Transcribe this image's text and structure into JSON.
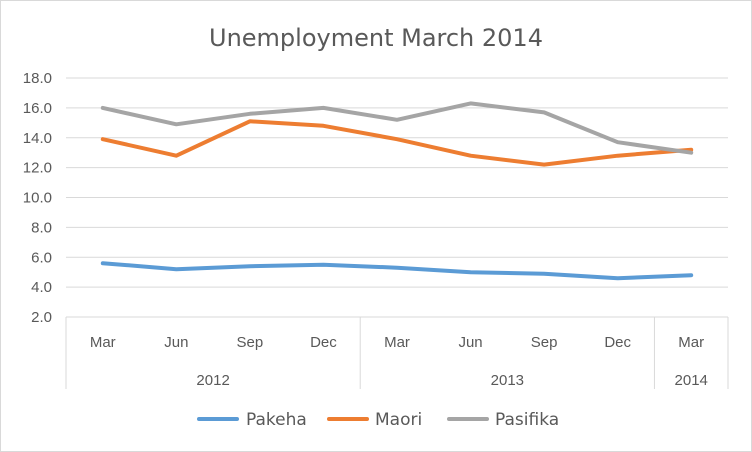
{
  "chart_data": {
    "type": "line",
    "title": "Unemployment  March 2014",
    "xlabel": "",
    "ylabel": "",
    "ylim": [
      2.0,
      18.0
    ],
    "yticks": [
      "2.0",
      "4.0",
      "6.0",
      "8.0",
      "10.0",
      "12.0",
      "14.0",
      "16.0",
      "18.0"
    ],
    "grid": true,
    "legend_position": "bottom",
    "categories": [
      "Mar",
      "Jun",
      "Sep",
      "Dec",
      "Mar",
      "Jun",
      "Sep",
      "Dec",
      "Mar"
    ],
    "year_groups": [
      {
        "label": "2012",
        "count": 4
      },
      {
        "label": "2013",
        "count": 4
      },
      {
        "label": "2014",
        "count": 1
      }
    ],
    "series": [
      {
        "name": "Pakeha",
        "color": "#5B9BD5",
        "values": [
          5.6,
          5.2,
          5.4,
          5.5,
          5.3,
          5.0,
          4.9,
          4.6,
          4.8
        ]
      },
      {
        "name": "Maori",
        "color": "#ED7D31",
        "values": [
          13.9,
          12.8,
          15.1,
          14.8,
          13.9,
          12.8,
          12.2,
          12.8,
          13.2
        ]
      },
      {
        "name": "Pasifika",
        "color": "#A5A5A5",
        "values": [
          16.0,
          14.9,
          15.6,
          16.0,
          15.2,
          16.3,
          15.7,
          13.7,
          13.0
        ]
      }
    ]
  }
}
